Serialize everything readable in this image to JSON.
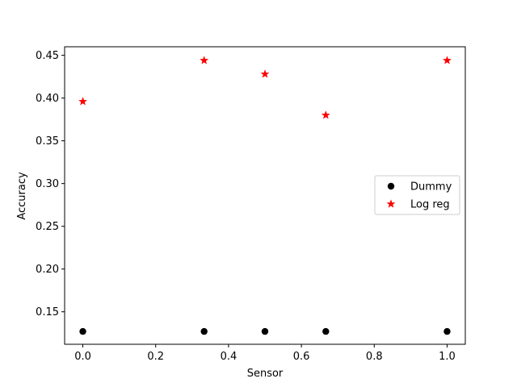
{
  "chart_data": {
    "type": "scatter",
    "title": "",
    "xlabel": "Sensor",
    "ylabel": "Accuracy",
    "xlim": [
      -0.05,
      1.05
    ],
    "ylim": [
      0.112,
      0.46
    ],
    "xticks": [
      0.0,
      0.2,
      0.4,
      0.6,
      0.8,
      1.0
    ],
    "xtick_labels": [
      "0.0",
      "0.2",
      "0.4",
      "0.6",
      "0.8",
      "1.0"
    ],
    "yticks": [
      0.15,
      0.2,
      0.25,
      0.3,
      0.35,
      0.4,
      0.45
    ],
    "ytick_labels": [
      "0.15",
      "0.20",
      "0.25",
      "0.30",
      "0.35",
      "0.40",
      "0.45"
    ],
    "grid": false,
    "legend_position": "center-right",
    "series": [
      {
        "name": "Dummy",
        "marker": "circle",
        "color": "#000000",
        "x": [
          0.0,
          0.333,
          0.5,
          0.667,
          1.0
        ],
        "y": [
          0.127,
          0.127,
          0.127,
          0.127,
          0.127
        ]
      },
      {
        "name": "Log reg",
        "marker": "star",
        "color": "#ff0000",
        "x": [
          0.0,
          0.333,
          0.5,
          0.667,
          1.0
        ],
        "y": [
          0.396,
          0.444,
          0.428,
          0.38,
          0.444
        ]
      }
    ]
  }
}
